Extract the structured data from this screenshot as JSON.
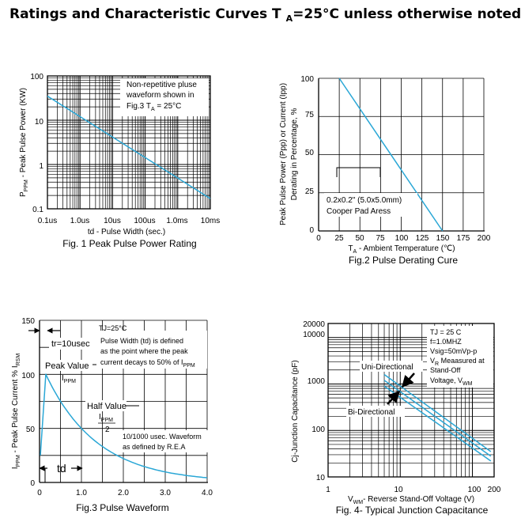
{
  "header": {
    "title_main": "Ratings and Characteristic Curves T",
    "title_sub": "A",
    "title_rest": "=25°C unless otherwise noted"
  },
  "colors": {
    "curve": "#2aa7d6",
    "grid": "#000000"
  },
  "chart_data": [
    {
      "id": "fig1",
      "type": "line",
      "title": "Fig. 1 Peak Pulse Power Rating",
      "xlabel": "td - Pulse Width (sec.)",
      "ylabel_main": "P",
      "ylabel_sub": "PPM",
      "ylabel_rest": " - Peak Pulse Power (KW)",
      "xscale": "log",
      "yscale": "log",
      "xticks": [
        "0.1us",
        "1.0us",
        "10us",
        "100us",
        "1.0ms",
        "10ms"
      ],
      "yticks": [
        "100",
        "10",
        "1",
        "0.1"
      ],
      "annotation": [
        "Non-repetitive pluse",
        "waveform shown in",
        "Fig.3 T",
        "A",
        " = 25°C"
      ],
      "series": [
        {
          "x_us": [
            0.1,
            10000
          ],
          "y_kw": [
            35,
            0.17
          ]
        }
      ]
    },
    {
      "id": "fig2",
      "type": "line",
      "title": "Fig.2 Pulse Derating Cure",
      "xlabel_main": "T",
      "xlabel_sub": "A",
      "xlabel_rest": " - Ambient Temperature (℃)",
      "ylabel_line1": "Peak Pulse Power (Ppp) or Current (Ipp)",
      "ylabel_line2": "Derating in Percentage, %",
      "xticks": [
        0,
        25,
        50,
        75,
        100,
        125,
        150,
        175,
        200
      ],
      "yticks": [
        0,
        25,
        50,
        75,
        100
      ],
      "xlim": [
        0,
        200
      ],
      "ylim": [
        0,
        100
      ],
      "annotation": [
        "0.2x0.2\" (5.0x5.0mm)",
        "Cooper Pad Aress"
      ],
      "series": [
        {
          "x": [
            25,
            150
          ],
          "y": [
            100,
            0
          ]
        }
      ]
    },
    {
      "id": "fig3",
      "type": "line",
      "title": "Fig.3 Pulse Waveform",
      "xlabel": "",
      "ylabel_main": "I",
      "ylabel_sub": "PPM",
      "ylabel_rest": " - Peak Pulse Current % I",
      "ylabel_sub2": "RSM",
      "xticks": [
        "0",
        "1.0",
        "2.0",
        "3.0",
        "4.0"
      ],
      "yticks": [
        "0",
        "50",
        "100",
        "150"
      ],
      "xlim": [
        0,
        4
      ],
      "ylim": [
        0,
        150
      ],
      "notes": {
        "tj": "TJ=25°C",
        "tr": "tr=10usec",
        "pw1": "Pulse Width (td) is defined",
        "pw2": "as the point where the peak",
        "pw3": "current decays to 50% of I",
        "pw3_sub": "PPM",
        "peak": "Peak Value",
        "peak_sub": "I",
        "peak_sub2": "PPM",
        "half": "Half Value",
        "half_num": "I",
        "half_num_sub": "PPM",
        "half_den": "2",
        "wave1": "10/1000 usec. Waveform",
        "wave2": "as defined by R.E.A",
        "td": "td"
      },
      "series": [
        {
          "rise_end_x": 0.15,
          "peak": 100,
          "half_x": 1.0,
          "start_y": 25
        }
      ]
    },
    {
      "id": "fig4",
      "type": "line",
      "title": "Fig. 4- Typical Junction Capacitance",
      "xlabel_main": "V",
      "xlabel_sub": "WM",
      "xlabel_rest": "- Reverse Stand-Off Voltage (V)",
      "ylabel": "Cj-Junction Capacitance (pF)",
      "xscale": "log",
      "yscale": "log",
      "xticks": [
        "1",
        "10",
        "100",
        "200"
      ],
      "yticks": [
        "20000",
        "10000",
        "1000",
        "100",
        "10"
      ],
      "notes": {
        "l1": "TJ = 25 C",
        "l2": "f=1.0MHZ",
        "l3": "Vsig=50mVp-p",
        "l4": "V",
        "l4_sub": "R",
        "l4_rest": " Meaasured at",
        "l5": "Stand-Off",
        "l6": "Voltage, V",
        "l6_sub": "WM",
        "uni": "Uni-Directional",
        "bi": "Bi-Directional"
      },
      "series": [
        {
          "name": "Uni-Directional",
          "x": [
            6,
            180
          ],
          "y": [
            1600,
            35
          ]
        },
        {
          "name": "",
          "x": [
            6,
            180
          ],
          "y": [
            1200,
            28
          ]
        },
        {
          "name": "Bi-Directional",
          "x": [
            6,
            180
          ],
          "y": [
            900,
            22
          ]
        }
      ]
    }
  ]
}
